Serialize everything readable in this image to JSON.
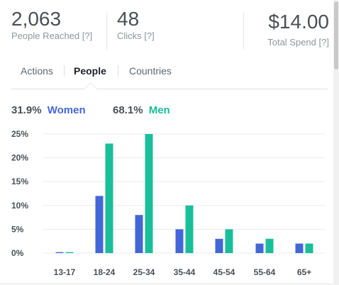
{
  "metrics": {
    "reached": {
      "value": "2,063",
      "label": "People Reached",
      "help": "[?]"
    },
    "clicks": {
      "value": "48",
      "label": "Clicks",
      "help": "[?]"
    },
    "spend": {
      "value": "$14.00",
      "label": "Total Spend",
      "help": "[?]"
    }
  },
  "tabs": [
    {
      "label": "Actions",
      "active": false
    },
    {
      "label": "People",
      "active": true
    },
    {
      "label": "Countries",
      "active": false
    }
  ],
  "legend": {
    "women": {
      "pct": "31.9%",
      "label": "Women"
    },
    "men": {
      "pct": "68.1%",
      "label": "Men"
    }
  },
  "colors": {
    "women": "#4467d8",
    "men": "#19bf9a",
    "grid": "#e9ebee"
  },
  "chart_data": {
    "type": "bar",
    "categories": [
      "13-17",
      "18-24",
      "25-34",
      "35-44",
      "45-54",
      "55-64",
      "65+"
    ],
    "series": [
      {
        "name": "Women",
        "values": [
          0.2,
          12,
          8,
          5,
          3,
          2,
          2
        ]
      },
      {
        "name": "Men",
        "values": [
          0.2,
          23,
          25,
          10,
          5,
          3,
          2
        ]
      }
    ],
    "yticks": [
      "25%",
      "20%",
      "15%",
      "10%",
      "5%",
      "0%"
    ],
    "ylim": [
      0,
      25
    ],
    "grid": true,
    "legend_position": "top-left"
  }
}
